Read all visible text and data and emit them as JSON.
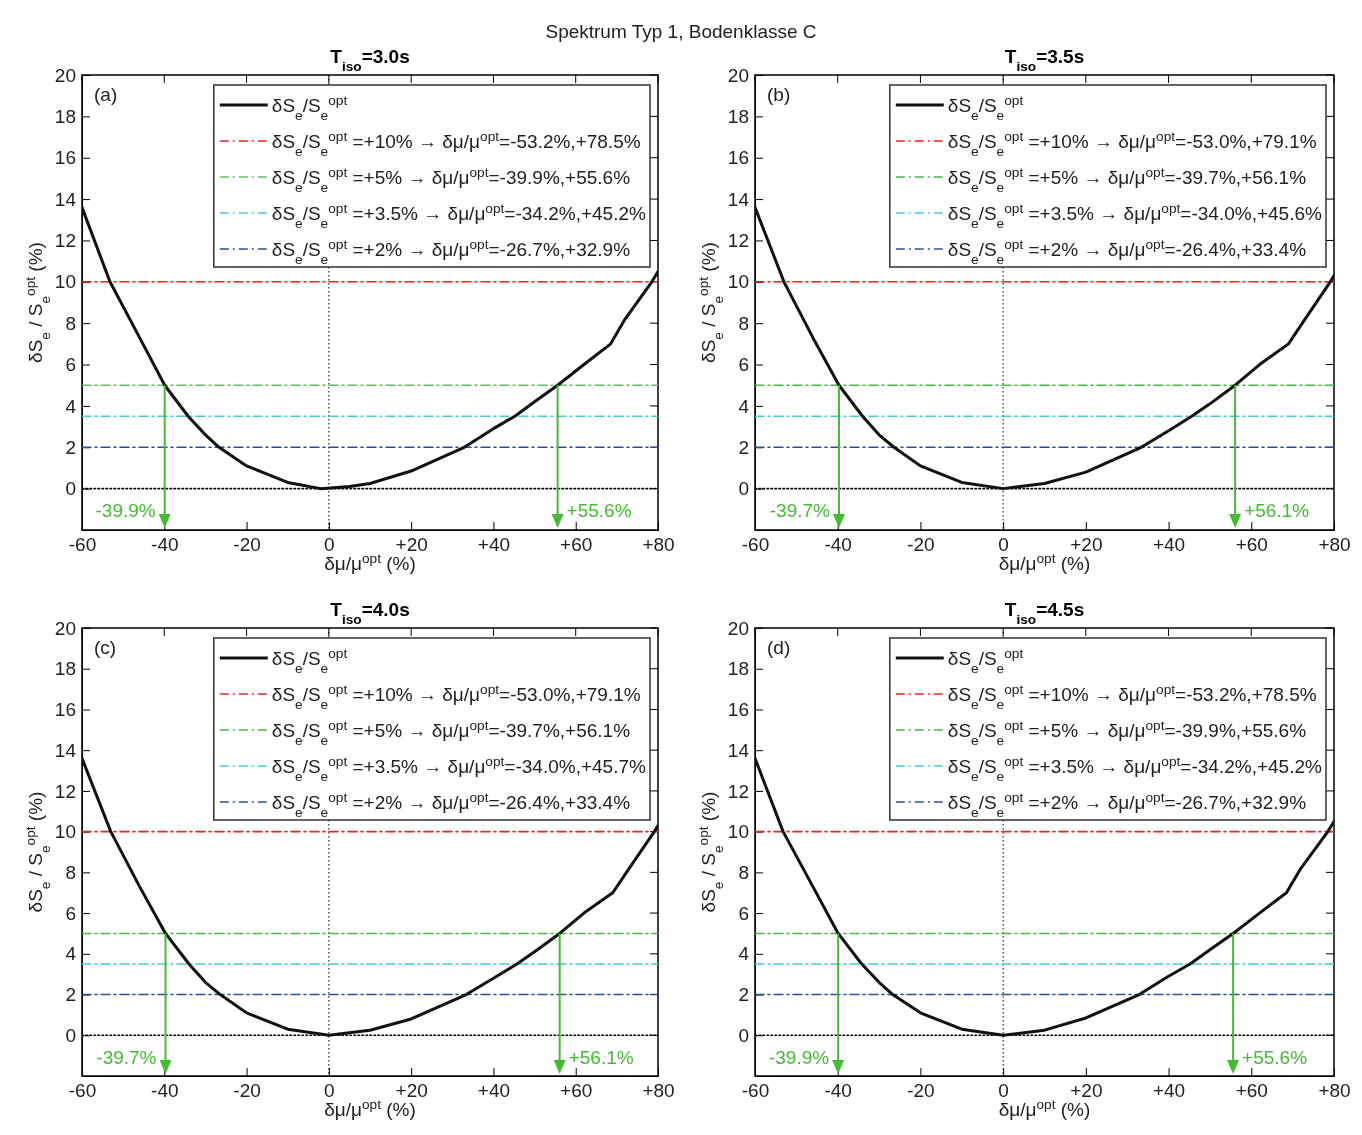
{
  "chart_data": [
    {
      "type": "line",
      "title": "T$_{iso}$=3.0s",
      "xlabel": "δμ/μ$^{opt}$  (%)",
      "ylabel": "δS$_{e}$ / S$_{e}$$^{opt}$  (%)",
      "annotations": [
        "(a)",
        "Spektrum Typ 1, Bodenklasse C",
        {
          "text": "-39.9%",
          "x": -39.9,
          "y": 5
        },
        {
          "text": "+55.6%",
          "x": 55.6,
          "y": 5
        }
      ],
      "xlim": [
        -60,
        80
      ],
      "xticks": [
        -60,
        -40,
        -20,
        0,
        {
          "value": 20,
          "label": "+20"
        },
        {
          "value": 40,
          "label": "+40"
        },
        {
          "value": 60,
          "label": "+60"
        },
        {
          "value": 80,
          "label": "+80"
        }
      ],
      "ylim": [
        -2,
        20
      ],
      "yticks": [
        0,
        2,
        4,
        6,
        8,
        10,
        12,
        14,
        16,
        18,
        20
      ],
      "grid": false,
      "legend": "top right",
      "ref_lines": [
        {
          "axis": "x",
          "value": 0,
          "color": "#000000",
          "line_style": "dotted"
        }
      ],
      "series": [
        {
          "name": "δS$_{e}$/S$_{e}$$^{opt}$",
          "color": "#111111",
          "line_style": "solid",
          "x": [
            -60,
            -53.2,
            -46,
            -39.9,
            -34.2,
            -30,
            -26.7,
            -20,
            -10,
            -2,
            5,
            10,
            20,
            32.9,
            40,
            45.2,
            50,
            55.6,
            62,
            68.5,
            72,
            78.5,
            80
          ],
          "values": [
            13.6,
            10,
            7.3,
            5,
            3.5,
            2.6,
            2,
            1.1,
            0.3,
            0,
            0.1,
            0.25,
            0.85,
            2,
            2.9,
            3.5,
            4.2,
            5,
            6,
            7,
            8.2,
            10,
            10.5
          ]
        },
        {
          "name": "δS$_{e}$/S$_{e}$$^{opt}$ =+10% → δμ/μ$^{opt}$=-53.2%,+78.5%",
          "color": "#ee2222",
          "line_style": "dashed",
          "x": [
            -60,
            80
          ],
          "values": [
            10,
            10
          ]
        },
        {
          "name": "δS$_{e}$/S$_{e}$$^{opt}$ =+5% → δμ/μ$^{opt}$=-39.9%,+55.6%",
          "color": "#66bb66",
          "line_style": "dashed",
          "x": [
            -60,
            80
          ],
          "values": [
            5,
            5
          ]
        },
        {
          "name": "δS$_{e}$/S$_{e}$$^{opt}$ =+3.5% → δμ/μ$^{opt}$=-34.2%,+45.2%",
          "color": "#44ccdd",
          "line_style": "dashed",
          "x": [
            -60,
            80
          ],
          "values": [
            3.5,
            3.5
          ]
        },
        {
          "name": "δS$_{e}$/S$_{e}$$^{opt}$ =+2% → δμ/μ$^{opt}$=-26.7%,+32.9%",
          "color": "#2a4fa0",
          "line_style": "dashed",
          "x": [
            -60,
            80
          ],
          "values": [
            2,
            2
          ]
        },
        {
          "color": "#000000",
          "line_style": "dotted",
          "x": [
            -60,
            80
          ],
          "values": [
            0,
            0
          ]
        }
      ]
    },
    {
      "type": "line",
      "title": "T$_{iso}$=3.5s",
      "xlabel": "δμ/μ$^{opt}$  (%)",
      "ylabel": "δS$_{e}$ / S$_{e}$$^{opt}$  (%)",
      "annotations": [
        "(b)",
        {
          "text": "-39.7%",
          "x": -39.7,
          "y": 5
        },
        {
          "text": "+56.1%",
          "x": 56.1,
          "y": 5
        }
      ],
      "xlim": [
        -60,
        80
      ],
      "xticks": [
        -60,
        -40,
        -20,
        0,
        {
          "value": 20,
          "label": "+20"
        },
        {
          "value": 40,
          "label": "+40"
        },
        {
          "value": 60,
          "label": "+60"
        },
        {
          "value": 80,
          "label": "+80"
        }
      ],
      "ylim": [
        -2,
        20
      ],
      "yticks": [
        0,
        2,
        4,
        6,
        8,
        10,
        12,
        14,
        16,
        18,
        20
      ],
      "grid": false,
      "legend": "top right",
      "ref_lines": [
        {
          "axis": "x",
          "value": 0,
          "color": "#000000",
          "line_style": "dotted"
        }
      ],
      "series": [
        {
          "name": "δS$_{e}$/S$_{e}$$^{opt}$",
          "color": "#111111",
          "line_style": "solid",
          "x": [
            -60,
            -53,
            -46,
            -39.7,
            -34,
            -30,
            -26.4,
            -20,
            -10,
            0,
            10,
            20,
            33.4,
            40,
            45.6,
            50,
            56.1,
            62,
            69,
            73,
            79.1,
            80
          ],
          "values": [
            13.6,
            10,
            7.3,
            5,
            3.5,
            2.6,
            2,
            1.1,
            0.3,
            0,
            0.25,
            0.8,
            2,
            2.8,
            3.5,
            4.1,
            5,
            6,
            7,
            8.2,
            10,
            10.3
          ]
        },
        {
          "name": "δS$_{e}$/S$_{e}$$^{opt}$ =+10% → δμ/μ$^{opt}$=-53.0%,+79.1%",
          "color": "#ee2222",
          "line_style": "dashed",
          "x": [
            -60,
            80
          ],
          "values": [
            10,
            10
          ]
        },
        {
          "name": "δS$_{e}$/S$_{e}$$^{opt}$ =+5% → δμ/μ$^{opt}$=-39.7%,+56.1%",
          "color": "#44bb44",
          "line_style": "dashed",
          "x": [
            -60,
            80
          ],
          "values": [
            5,
            5
          ]
        },
        {
          "name": "δS$_{e}$/S$_{e}$$^{opt}$ =+3.5% → δμ/μ$^{opt}$=-34.0%,+45.6%",
          "color": "#44ccdd",
          "line_style": "dashed",
          "x": [
            -60,
            80
          ],
          "values": [
            3.5,
            3.5
          ]
        },
        {
          "name": "δS$_{e}$/S$_{e}$$^{opt}$ =+2% → δμ/μ$^{opt}$=-26.4%,+33.4%",
          "color": "#2a4fa0",
          "line_style": "dashed",
          "x": [
            -60,
            80
          ],
          "values": [
            2,
            2
          ]
        },
        {
          "color": "#000000",
          "line_style": "dotted",
          "x": [
            -60,
            80
          ],
          "values": [
            0,
            0
          ]
        }
      ]
    },
    {
      "type": "line",
      "title": "T$_{iso}$=4.0s",
      "xlabel": "δμ/μ$^{opt}$  (%)",
      "ylabel": "δS$_{e}$ / S$_{e}$$^{opt}$  (%)",
      "annotations": [
        "(c)",
        {
          "text": "-39.7%",
          "x": -39.7,
          "y": 5
        },
        {
          "text": "+56.1%",
          "x": 56.1,
          "y": 5
        }
      ],
      "xlim": [
        -60,
        80
      ],
      "xticks": [
        -60,
        -40,
        -20,
        0,
        {
          "value": 20,
          "label": "+20"
        },
        {
          "value": 40,
          "label": "+40"
        },
        {
          "value": 60,
          "label": "+60"
        },
        {
          "value": 80,
          "label": "+80"
        }
      ],
      "ylim": [
        -2,
        20
      ],
      "yticks": [
        0,
        2,
        4,
        6,
        8,
        10,
        12,
        14,
        16,
        18,
        20
      ],
      "grid": false,
      "legend": "top right",
      "ref_lines": [
        {
          "axis": "x",
          "value": 0,
          "color": "#000000",
          "line_style": "dotted"
        }
      ],
      "series": [
        {
          "name": "δS$_{e}$/S$_{e}$$^{opt}$",
          "color": "#111111",
          "line_style": "solid",
          "x": [
            -60,
            -53,
            -46,
            -39.7,
            -34,
            -30,
            -26.4,
            -20,
            -10,
            0,
            10,
            20,
            33.4,
            40,
            45.7,
            50,
            56.1,
            62,
            69,
            73,
            79.1,
            80
          ],
          "values": [
            13.6,
            10,
            7.3,
            5,
            3.5,
            2.6,
            2,
            1.1,
            0.3,
            0,
            0.25,
            0.8,
            2,
            2.8,
            3.5,
            4.1,
            5,
            6,
            7,
            8.2,
            10,
            10.3
          ]
        },
        {
          "name": "δS$_{e}$/S$_{e}$$^{opt}$ =+10% → δμ/μ$^{opt}$=-53.0%,+79.1%",
          "color": "#ee2222",
          "line_style": "dashed",
          "x": [
            -60,
            80
          ],
          "values": [
            10,
            10
          ]
        },
        {
          "name": "δS$_{e}$/S$_{e}$$^{opt}$ =+5% → δμ/μ$^{opt}$=-39.7%,+56.1%",
          "color": "#44bb44",
          "line_style": "dashed",
          "x": [
            -60,
            80
          ],
          "values": [
            5,
            5
          ]
        },
        {
          "name": "δS$_{e}$/S$_{e}$$^{opt}$ =+3.5% → δμ/μ$^{opt}$=-34.0%,+45.7%",
          "color": "#44ccdd",
          "line_style": "dashed",
          "x": [
            -60,
            80
          ],
          "values": [
            3.5,
            3.5
          ]
        },
        {
          "name": "δS$_{e}$/S$_{e}$$^{opt}$ =+2% → δμ/μ$^{opt}$=-26.4%,+33.4%",
          "color": "#2a4fa0",
          "line_style": "dashed",
          "x": [
            -60,
            80
          ],
          "values": [
            2,
            2
          ]
        },
        {
          "color": "#000000",
          "line_style": "dotted",
          "x": [
            -60,
            80
          ],
          "values": [
            0,
            0
          ]
        }
      ]
    },
    {
      "type": "line",
      "title": "T$_{iso}$=4.5s",
      "xlabel": "δμ/μ$^{opt}$  (%)",
      "ylabel": "δS$_{e}$ / S$_{e}$$^{opt}$  (%)",
      "annotations": [
        "(d)",
        {
          "text": "-39.9%",
          "x": -39.9,
          "y": 5
        },
        {
          "text": "+55.6%",
          "x": 55.6,
          "y": 5
        }
      ],
      "xlim": [
        -60,
        80
      ],
      "xticks": [
        -60,
        -40,
        -20,
        0,
        {
          "value": 20,
          "label": "+20"
        },
        {
          "value": 40,
          "label": "+40"
        },
        {
          "value": 60,
          "label": "+60"
        },
        {
          "value": 80,
          "label": "+80"
        }
      ],
      "ylim": [
        -2,
        20
      ],
      "yticks": [
        0,
        2,
        4,
        6,
        8,
        10,
        12,
        14,
        16,
        18,
        20
      ],
      "grid": false,
      "legend": "top right",
      "ref_lines": [
        {
          "axis": "x",
          "value": 0,
          "color": "#000000",
          "line_style": "dotted"
        }
      ],
      "series": [
        {
          "name": "δS$_{e}$/S$_{e}$$^{opt}$",
          "color": "#111111",
          "line_style": "solid",
          "x": [
            -60,
            -53.2,
            -46,
            -39.9,
            -34.2,
            -30,
            -26.7,
            -20,
            -10,
            0,
            10,
            20,
            32.9,
            40,
            45.2,
            50,
            55.6,
            62,
            68.5,
            72,
            78.5,
            80
          ],
          "values": [
            13.6,
            10,
            7.3,
            5,
            3.5,
            2.6,
            2,
            1.1,
            0.3,
            0,
            0.25,
            0.85,
            2,
            2.9,
            3.5,
            4.2,
            5,
            6,
            7,
            8.2,
            10,
            10.5
          ]
        },
        {
          "name": "δS$_{e}$/S$_{e}$$^{opt}$ =+10% → δμ/μ$^{opt}$=-53.2%,+78.5%",
          "color": "#ee2222",
          "line_style": "dashed",
          "x": [
            -60,
            80
          ],
          "values": [
            10,
            10
          ]
        },
        {
          "name": "δS$_{e}$/S$_{e}$$^{opt}$ =+5% → δμ/μ$^{opt}$=-39.9%,+55.6%",
          "color": "#44bb44",
          "line_style": "dashed",
          "x": [
            -60,
            80
          ],
          "values": [
            5,
            5
          ]
        },
        {
          "name": "δS$_{e}$/S$_{e}$$^{opt}$ =+3.5% → δμ/μ$^{opt}$=-34.2%,+45.2%",
          "color": "#44ccdd",
          "line_style": "dashed",
          "x": [
            -60,
            80
          ],
          "values": [
            3.5,
            3.5
          ]
        },
        {
          "name": "δS$_{e}$/S$_{e}$$^{opt}$ =+2% → δμ/μ$^{opt}$=-26.7%,+32.9%",
          "color": "#2a4fa0",
          "line_style": "dashed",
          "x": [
            -60,
            80
          ],
          "values": [
            2,
            2
          ]
        },
        {
          "color": "#000000",
          "line_style": "dotted",
          "x": [
            -60,
            80
          ],
          "values": [
            0,
            0
          ]
        }
      ]
    }
  ]
}
